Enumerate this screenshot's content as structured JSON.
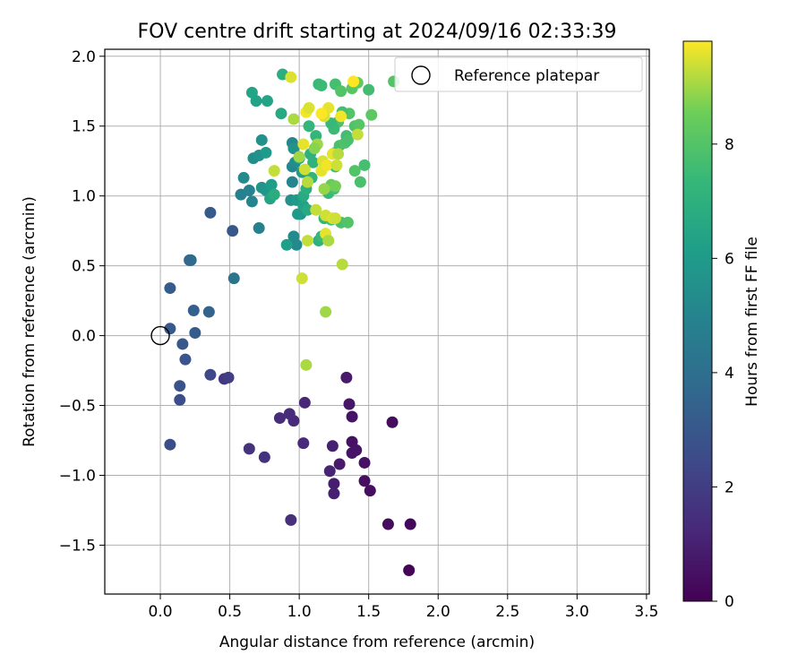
{
  "chart_data": {
    "type": "scatter",
    "title": "FOV centre drift starting at 2024/09/16 02:33:39",
    "xlabel": "Angular distance from reference (arcmin)",
    "ylabel": "Rotation from reference (arcmin)",
    "xlim": [
      -0.4,
      3.52
    ],
    "ylim": [
      -1.85,
      2.05
    ],
    "xticks": [
      0.0,
      0.5,
      1.0,
      1.5,
      2.0,
      2.5,
      3.0,
      3.5
    ],
    "xtick_labels": [
      "0.0",
      "0.5",
      "1.0",
      "1.5",
      "2.0",
      "2.5",
      "3.0",
      "3.5"
    ],
    "yticks": [
      -1.5,
      -1.0,
      -0.5,
      0.0,
      0.5,
      1.0,
      1.5,
      2.0
    ],
    "ytick_labels": [
      "−1.5",
      "−1.0",
      "−0.5",
      "0.0",
      "0.5",
      "1.0",
      "1.5",
      "2.0"
    ],
    "grid": true,
    "legend": {
      "placement": "top-right",
      "entries": [
        "Reference platepar"
      ]
    },
    "colorbar": {
      "label": "Hours from first FF file",
      "range": [
        0,
        9.8
      ],
      "ticks": [
        0,
        2,
        4,
        6,
        8
      ],
      "tick_labels": [
        "0",
        "2",
        "4",
        "6",
        "8"
      ],
      "colormap": "viridis"
    },
    "reference_point": {
      "x": 0.0,
      "y": 0.0
    },
    "points": [
      {
        "x": 1.79,
        "y": -1.68,
        "h": 0.1
      },
      {
        "x": 1.8,
        "y": -1.35,
        "h": 0.2
      },
      {
        "x": 1.64,
        "y": -1.35,
        "h": 0.3
      },
      {
        "x": 1.67,
        "y": -0.62,
        "h": 0.3
      },
      {
        "x": 1.51,
        "y": -1.11,
        "h": 0.4
      },
      {
        "x": 1.47,
        "y": -1.04,
        "h": 0.4
      },
      {
        "x": 1.47,
        "y": -0.91,
        "h": 0.5
      },
      {
        "x": 1.38,
        "y": -0.76,
        "h": 0.5
      },
      {
        "x": 1.38,
        "y": -0.84,
        "h": 0.6
      },
      {
        "x": 1.41,
        "y": -0.82,
        "h": 0.6
      },
      {
        "x": 1.38,
        "y": -0.58,
        "h": 0.6
      },
      {
        "x": 1.36,
        "y": -0.49,
        "h": 0.7
      },
      {
        "x": 1.34,
        "y": -0.3,
        "h": 0.8
      },
      {
        "x": 1.29,
        "y": -0.92,
        "h": 0.8
      },
      {
        "x": 1.25,
        "y": -1.06,
        "h": 0.9
      },
      {
        "x": 1.25,
        "y": -1.13,
        "h": 1.0
      },
      {
        "x": 1.24,
        "y": -0.79,
        "h": 1.0
      },
      {
        "x": 1.22,
        "y": -0.97,
        "h": 1.1
      },
      {
        "x": 1.04,
        "y": -0.48,
        "h": 1.2
      },
      {
        "x": 1.03,
        "y": -0.77,
        "h": 1.3
      },
      {
        "x": 0.96,
        "y": -0.61,
        "h": 1.3
      },
      {
        "x": 0.93,
        "y": -0.56,
        "h": 1.4
      },
      {
        "x": 0.86,
        "y": -0.59,
        "h": 1.4
      },
      {
        "x": 0.94,
        "y": -1.32,
        "h": 1.5
      },
      {
        "x": 0.75,
        "y": -0.87,
        "h": 1.6
      },
      {
        "x": 0.64,
        "y": -0.81,
        "h": 1.6
      },
      {
        "x": 0.46,
        "y": -0.31,
        "h": 1.8
      },
      {
        "x": 0.49,
        "y": -0.3,
        "h": 2.0
      },
      {
        "x": 0.36,
        "y": -0.28,
        "h": 2.4
      },
      {
        "x": 0.14,
        "y": -0.46,
        "h": 2.6
      },
      {
        "x": 0.07,
        "y": -0.78,
        "h": 2.6
      },
      {
        "x": 0.14,
        "y": -0.36,
        "h": 2.8
      },
      {
        "x": 0.18,
        "y": -0.17,
        "h": 2.9
      },
      {
        "x": 0.16,
        "y": -0.06,
        "h": 3.0
      },
      {
        "x": 0.07,
        "y": 0.05,
        "h": 3.1
      },
      {
        "x": 0.25,
        "y": 0.02,
        "h": 3.2
      },
      {
        "x": 0.24,
        "y": 0.18,
        "h": 3.3
      },
      {
        "x": 0.35,
        "y": 0.17,
        "h": 3.5
      },
      {
        "x": 0.07,
        "y": 0.34,
        "h": 3.2
      },
      {
        "x": 0.21,
        "y": 0.54,
        "h": 3.6
      },
      {
        "x": 0.22,
        "y": 0.54,
        "h": 3.8
      },
      {
        "x": 0.52,
        "y": 0.75,
        "h": 3.0
      },
      {
        "x": 0.36,
        "y": 0.88,
        "h": 3.1
      },
      {
        "x": 0.53,
        "y": 0.41,
        "h": 4.2
      },
      {
        "x": 0.71,
        "y": 0.77,
        "h": 4.8
      },
      {
        "x": 0.58,
        "y": 1.01,
        "h": 4.8
      },
      {
        "x": 0.64,
        "y": 1.04,
        "h": 4.9
      },
      {
        "x": 0.66,
        "y": 0.96,
        "h": 5.0
      },
      {
        "x": 0.6,
        "y": 1.13,
        "h": 5.3
      },
      {
        "x": 0.67,
        "y": 1.27,
        "h": 5.4
      },
      {
        "x": 0.73,
        "y": 1.4,
        "h": 5.5
      },
      {
        "x": 0.71,
        "y": 1.29,
        "h": 5.5
      },
      {
        "x": 0.73,
        "y": 1.06,
        "h": 5.7
      },
      {
        "x": 0.76,
        "y": 1.04,
        "h": 5.8
      },
      {
        "x": 0.8,
        "y": 1.08,
        "h": 6.1
      },
      {
        "x": 0.79,
        "y": 0.98,
        "h": 6.4
      },
      {
        "x": 0.82,
        "y": 1.01,
        "h": 6.8
      },
      {
        "x": 0.76,
        "y": 1.31,
        "h": 6.0
      },
      {
        "x": 0.66,
        "y": 1.74,
        "h": 6.4
      },
      {
        "x": 0.69,
        "y": 1.68,
        "h": 6.3
      },
      {
        "x": 0.77,
        "y": 1.68,
        "h": 6.4
      },
      {
        "x": 0.87,
        "y": 1.59,
        "h": 6.6
      },
      {
        "x": 0.88,
        "y": 1.87,
        "h": 6.9
      },
      {
        "x": 0.95,
        "y": 1.38,
        "h": 5.2
      },
      {
        "x": 0.96,
        "y": 1.34,
        "h": 5.6
      },
      {
        "x": 0.95,
        "y": 1.21,
        "h": 5.1
      },
      {
        "x": 0.97,
        "y": 1.24,
        "h": 5.4
      },
      {
        "x": 0.95,
        "y": 1.1,
        "h": 5.0
      },
      {
        "x": 0.94,
        "y": 0.97,
        "h": 5.6
      },
      {
        "x": 0.98,
        "y": 0.97,
        "h": 6.0
      },
      {
        "x": 0.96,
        "y": 0.71,
        "h": 5.3
      },
      {
        "x": 0.98,
        "y": 0.65,
        "h": 5.2
      },
      {
        "x": 0.91,
        "y": 0.65,
        "h": 6.2
      },
      {
        "x": 1.01,
        "y": 0.87,
        "h": 5.7
      },
      {
        "x": 0.99,
        "y": 0.87,
        "h": 5.9
      },
      {
        "x": 1.0,
        "y": 1.27,
        "h": 6.5
      },
      {
        "x": 1.02,
        "y": 1.17,
        "h": 6.1
      },
      {
        "x": 1.03,
        "y": 0.93,
        "h": 6.3
      },
      {
        "x": 1.06,
        "y": 0.9,
        "h": 6.6
      },
      {
        "x": 1.03,
        "y": 1.0,
        "h": 6.7
      },
      {
        "x": 1.05,
        "y": 1.05,
        "h": 6.9
      },
      {
        "x": 1.08,
        "y": 1.3,
        "h": 7.0
      },
      {
        "x": 1.1,
        "y": 1.24,
        "h": 7.1
      },
      {
        "x": 1.09,
        "y": 1.13,
        "h": 7.2
      },
      {
        "x": 1.07,
        "y": 1.5,
        "h": 7.3
      },
      {
        "x": 1.12,
        "y": 1.43,
        "h": 7.2
      },
      {
        "x": 1.14,
        "y": 1.8,
        "h": 7.4
      },
      {
        "x": 1.16,
        "y": 1.79,
        "h": 7.5
      },
      {
        "x": 1.14,
        "y": 0.68,
        "h": 7.0
      },
      {
        "x": 1.16,
        "y": 0.71,
        "h": 7.4
      },
      {
        "x": 1.18,
        "y": 0.84,
        "h": 7.3
      },
      {
        "x": 1.23,
        "y": 0.83,
        "h": 7.6
      },
      {
        "x": 1.3,
        "y": 0.81,
        "h": 7.8
      },
      {
        "x": 1.21,
        "y": 1.02,
        "h": 7.4
      },
      {
        "x": 1.25,
        "y": 1.05,
        "h": 7.7
      },
      {
        "x": 1.26,
        "y": 1.21,
        "h": 7.5
      },
      {
        "x": 1.26,
        "y": 1.31,
        "h": 7.6
      },
      {
        "x": 1.29,
        "y": 1.36,
        "h": 7.8
      },
      {
        "x": 1.33,
        "y": 1.38,
        "h": 7.9
      },
      {
        "x": 1.34,
        "y": 1.43,
        "h": 7.6
      },
      {
        "x": 1.35,
        "y": 1.4,
        "h": 7.8
      },
      {
        "x": 1.36,
        "y": 1.59,
        "h": 8.0
      },
      {
        "x": 1.31,
        "y": 1.6,
        "h": 7.7
      },
      {
        "x": 1.28,
        "y": 1.53,
        "h": 7.9
      },
      {
        "x": 1.25,
        "y": 1.48,
        "h": 7.5
      },
      {
        "x": 1.23,
        "y": 1.52,
        "h": 7.4
      },
      {
        "x": 1.26,
        "y": 1.8,
        "h": 7.7
      },
      {
        "x": 1.3,
        "y": 1.75,
        "h": 8.0
      },
      {
        "x": 1.38,
        "y": 1.77,
        "h": 8.1
      },
      {
        "x": 1.4,
        "y": 1.5,
        "h": 7.9
      },
      {
        "x": 1.43,
        "y": 1.51,
        "h": 8.1
      },
      {
        "x": 1.4,
        "y": 1.18,
        "h": 8.0
      },
      {
        "x": 1.44,
        "y": 1.1,
        "h": 7.8
      },
      {
        "x": 1.47,
        "y": 1.22,
        "h": 7.7
      },
      {
        "x": 1.5,
        "y": 1.76,
        "h": 7.6
      },
      {
        "x": 1.52,
        "y": 1.58,
        "h": 8.2
      },
      {
        "x": 1.42,
        "y": 1.81,
        "h": 8.3
      },
      {
        "x": 1.68,
        "y": 1.82,
        "h": 8.0
      },
      {
        "x": 1.35,
        "y": 0.81,
        "h": 8.0
      },
      {
        "x": 1.23,
        "y": 1.08,
        "h": 8.4
      },
      {
        "x": 1.26,
        "y": 1.07,
        "h": 8.6
      },
      {
        "x": 0.94,
        "y": 1.85,
        "h": 9.5
      },
      {
        "x": 0.82,
        "y": 1.18,
        "h": 9.3
      },
      {
        "x": 0.96,
        "y": 1.55,
        "h": 9.1
      },
      {
        "x": 1.03,
        "y": 1.37,
        "h": 9.6
      },
      {
        "x": 1.05,
        "y": 1.6,
        "h": 9.7
      },
      {
        "x": 1.07,
        "y": 1.63,
        "h": 9.5
      },
      {
        "x": 1.04,
        "y": 1.19,
        "h": 9.4
      },
      {
        "x": 1.06,
        "y": 1.1,
        "h": 9.2
      },
      {
        "x": 1.0,
        "y": 1.28,
        "h": 9.0
      },
      {
        "x": 1.12,
        "y": 0.9,
        "h": 9.3
      },
      {
        "x": 1.19,
        "y": 0.86,
        "h": 9.4
      },
      {
        "x": 1.16,
        "y": 1.18,
        "h": 9.6
      },
      {
        "x": 1.17,
        "y": 1.25,
        "h": 9.5
      },
      {
        "x": 1.2,
        "y": 1.22,
        "h": 9.7
      },
      {
        "x": 1.24,
        "y": 1.3,
        "h": 9.6
      },
      {
        "x": 1.27,
        "y": 1.22,
        "h": 9.4
      },
      {
        "x": 1.28,
        "y": 1.3,
        "h": 9.2
      },
      {
        "x": 1.21,
        "y": 1.63,
        "h": 9.6
      },
      {
        "x": 1.18,
        "y": 1.57,
        "h": 9.5
      },
      {
        "x": 1.16,
        "y": 1.59,
        "h": 9.8
      },
      {
        "x": 1.3,
        "y": 1.57,
        "h": 9.7
      },
      {
        "x": 1.39,
        "y": 1.82,
        "h": 9.8
      },
      {
        "x": 1.42,
        "y": 1.44,
        "h": 9.3
      },
      {
        "x": 1.24,
        "y": 0.84,
        "h": 9.5
      },
      {
        "x": 1.26,
        "y": 0.84,
        "h": 9.4
      },
      {
        "x": 1.19,
        "y": 0.73,
        "h": 9.6
      },
      {
        "x": 1.21,
        "y": 0.68,
        "h": 9.1
      },
      {
        "x": 1.06,
        "y": 0.68,
        "h": 9.3
      },
      {
        "x": 1.31,
        "y": 0.51,
        "h": 9.2
      },
      {
        "x": 1.02,
        "y": 0.41,
        "h": 9.4
      },
      {
        "x": 1.19,
        "y": 0.17,
        "h": 9.0
      },
      {
        "x": 1.05,
        "y": -0.21,
        "h": 9.1
      },
      {
        "x": 1.18,
        "y": 1.05,
        "h": 8.9
      },
      {
        "x": 1.13,
        "y": 1.37,
        "h": 9.0
      },
      {
        "x": 1.11,
        "y": 1.34,
        "h": 8.8
      }
    ]
  }
}
